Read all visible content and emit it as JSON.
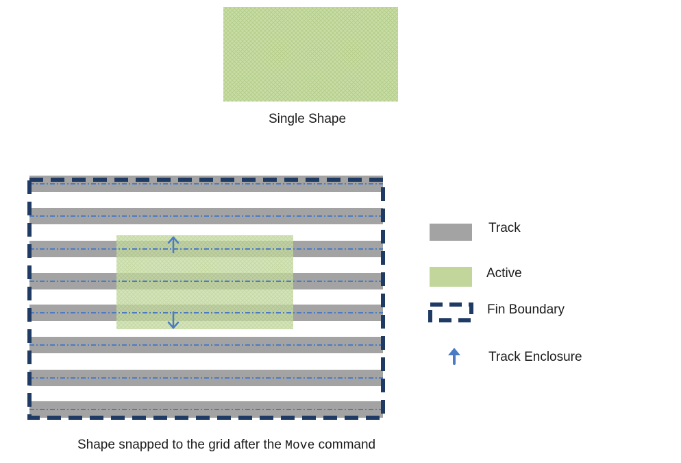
{
  "colors": {
    "track": "#a3a3a3",
    "active": "#c2d69c",
    "fin_boundary": "#1f3a63",
    "track_centerline": "#4a7bc4",
    "track_enclosure_arrow": "#4a7bc4"
  },
  "single_shape": {
    "caption": "Single Shape"
  },
  "grid_figure": {
    "caption_prefix": "Shape snapped to the grid after the ",
    "caption_command": "Move",
    "caption_suffix": " command",
    "track_count": 8
  },
  "legend": {
    "track": {
      "label": "Track",
      "icon": "track-swatch"
    },
    "active": {
      "label": "Active",
      "icon": "active-swatch"
    },
    "fin_boundary": {
      "label": "Fin Boundary",
      "icon": "dashed-rectangle"
    },
    "track_enclosure": {
      "label": "Track Enclosure",
      "icon": "up-arrow-icon"
    }
  }
}
